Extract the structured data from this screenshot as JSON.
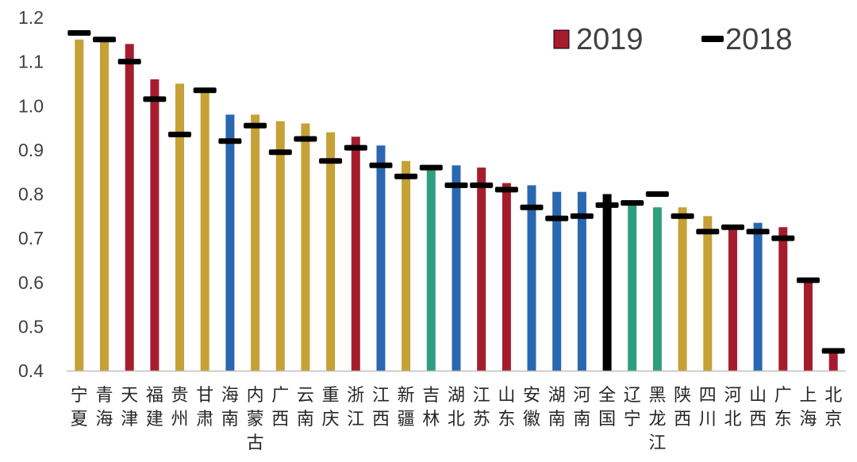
{
  "chart_data": {
    "type": "bar",
    "categories": [
      "宁夏",
      "青海",
      "天津",
      "福建",
      "贵州",
      "甘肃",
      "海南",
      "内蒙古",
      "广西",
      "云南",
      "重庆",
      "浙江",
      "江西",
      "新疆",
      "吉林",
      "湖北",
      "江苏",
      "山东",
      "安徽",
      "湖南",
      "河南",
      "全国",
      "辽宁",
      "黑龙江",
      "陕西",
      "四川",
      "河北",
      "山西",
      "广东",
      "上海",
      "北京"
    ],
    "series": [
      {
        "name": "2019",
        "type": "bar",
        "values": [
          1.15,
          1.15,
          1.14,
          1.06,
          1.05,
          1.04,
          0.98,
          0.98,
          0.965,
          0.96,
          0.94,
          0.93,
          0.91,
          0.875,
          0.865,
          0.865,
          0.86,
          0.825,
          0.82,
          0.805,
          0.805,
          0.8,
          0.785,
          0.77,
          0.77,
          0.75,
          0.73,
          0.735,
          0.725,
          0.605,
          0.445
        ],
        "colors": [
          "#C5A136",
          "#C5A136",
          "#A51D2D",
          "#A51D2D",
          "#C5A136",
          "#C5A136",
          "#2A67B1",
          "#C5A136",
          "#C5A136",
          "#C5A136",
          "#C5A136",
          "#A51D2D",
          "#2A67B1",
          "#C5A136",
          "#2F9E7F",
          "#2A67B1",
          "#A51D2D",
          "#A51D2D",
          "#2A67B1",
          "#2A67B1",
          "#2A67B1",
          "#000000",
          "#2F9E7F",
          "#2F9E7F",
          "#C5A136",
          "#C5A136",
          "#A51D2D",
          "#2A67B1",
          "#A51D2D",
          "#A51D2D",
          "#A51D2D"
        ]
      },
      {
        "name": "2018",
        "type": "marker",
        "color": "#000000",
        "values": [
          1.165,
          1.15,
          1.1,
          1.015,
          0.935,
          1.035,
          0.92,
          0.955,
          0.895,
          0.925,
          0.875,
          0.905,
          0.865,
          0.84,
          0.86,
          0.82,
          0.82,
          0.81,
          0.77,
          0.745,
          0.75,
          0.775,
          0.78,
          0.8,
          0.75,
          0.715,
          0.725,
          0.715,
          0.7,
          0.605,
          0.445
        ]
      }
    ],
    "yticks": [
      "0.4",
      "0.5",
      "0.6",
      "0.7",
      "0.8",
      "0.9",
      "1.0",
      "1.1",
      "1.2"
    ],
    "ylim": [
      0.4,
      1.2
    ],
    "legend": {
      "position": "top-right",
      "items": [
        {
          "label": "2019",
          "color": "#A51D2D",
          "kind": "box"
        },
        {
          "label": "2018",
          "color": "#000000",
          "kind": "dash"
        }
      ]
    },
    "axis_color": "#BFBFBF",
    "grid": false
  }
}
